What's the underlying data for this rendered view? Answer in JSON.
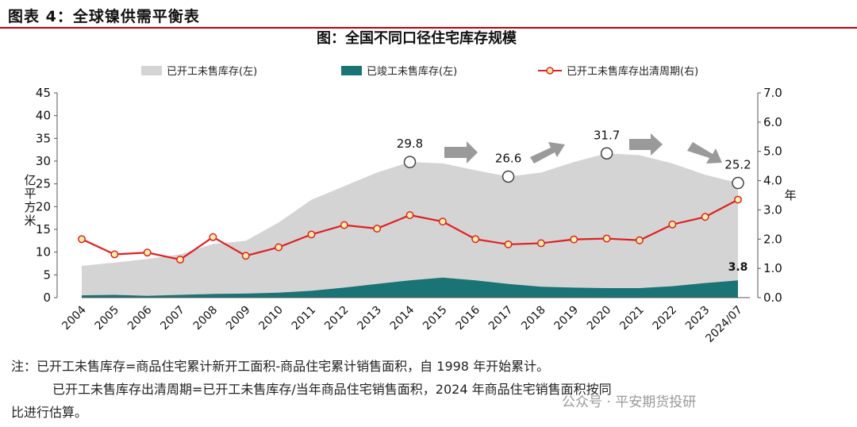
{
  "header": {
    "figure_label": "图表 4：全球镍供需平衡表"
  },
  "chart_data": {
    "type": "area",
    "title": "图：全国不同口径住宅库存规模",
    "categories": [
      "2004",
      "2005",
      "2006",
      "2007",
      "2008",
      "2009",
      "2010",
      "2011",
      "2012",
      "2013",
      "2014",
      "2015",
      "2016",
      "2017",
      "2018",
      "2019",
      "2020",
      "2021",
      "2022",
      "2023",
      "2024/07"
    ],
    "left_axis": {
      "label": "亿平方米",
      "ylim": [
        0,
        45
      ],
      "ticks": [
        "0",
        "5",
        "10",
        "15",
        "20",
        "25",
        "30",
        "35",
        "40",
        "45"
      ]
    },
    "right_axis": {
      "label": "年",
      "ylim": [
        0,
        7
      ],
      "ticks": [
        "0.0",
        "1.0",
        "2.0",
        "3.0",
        "4.0",
        "5.0",
        "6.0",
        "7.0"
      ]
    },
    "series": [
      {
        "name": "已开工未售库存(左)",
        "kind": "area",
        "axis": "left",
        "color": "#d4d4d4",
        "values": [
          7,
          7.7,
          8.5,
          9.5,
          11.8,
          12.5,
          16.5,
          21.5,
          24.5,
          27.5,
          29.8,
          29.5,
          28,
          26.6,
          27.5,
          29.8,
          31.7,
          31.3,
          29.5,
          27,
          25.2
        ]
      },
      {
        "name": "已竣工未售库存(左)",
        "kind": "area",
        "axis": "left",
        "color": "#1a7374",
        "values": [
          0.5,
          0.6,
          0.4,
          0.6,
          0.8,
          0.9,
          1.1,
          1.5,
          2.2,
          3,
          3.8,
          4.4,
          3.8,
          3,
          2.4,
          2.2,
          2.1,
          2.1,
          2.5,
          3.2,
          3.8
        ]
      },
      {
        "name": "已开工未售库存出清周期(右)",
        "kind": "line",
        "axis": "right",
        "color": "#e02020",
        "marker_color": "#fff2a8",
        "values": [
          2.0,
          1.48,
          1.54,
          1.3,
          2.07,
          1.43,
          1.72,
          2.16,
          2.48,
          2.36,
          2.82,
          2.6,
          2.0,
          1.82,
          1.86,
          1.99,
          2.02,
          1.96,
          2.5,
          2.76,
          3.35
        ]
      }
    ],
    "annotations": [
      {
        "label": "29.8",
        "category": "2014",
        "value": 29.8
      },
      {
        "label": "26.6",
        "category": "2017",
        "value": 26.6
      },
      {
        "label": "31.7",
        "category": "2020",
        "value": 31.7
      },
      {
        "label": "25.2",
        "category": "2024/07",
        "value": 25.2
      },
      {
        "label": "3.8",
        "category": "2024/07",
        "value": 3.8
      }
    ],
    "legend_position": "top"
  },
  "notes": {
    "line1": "注：已开工未售库存=商品住宅累计新开工面积-商品住宅累计销售面积，自 1998 年开始累计。",
    "line2": "已开工未售库存出清周期=已开工未售库存/当年商品住宅销售面积，2024 年商品住宅销售面积按同",
    "line3": "比进行估算。"
  },
  "watermark": {
    "text": "公众号 · 平安期货投研"
  }
}
